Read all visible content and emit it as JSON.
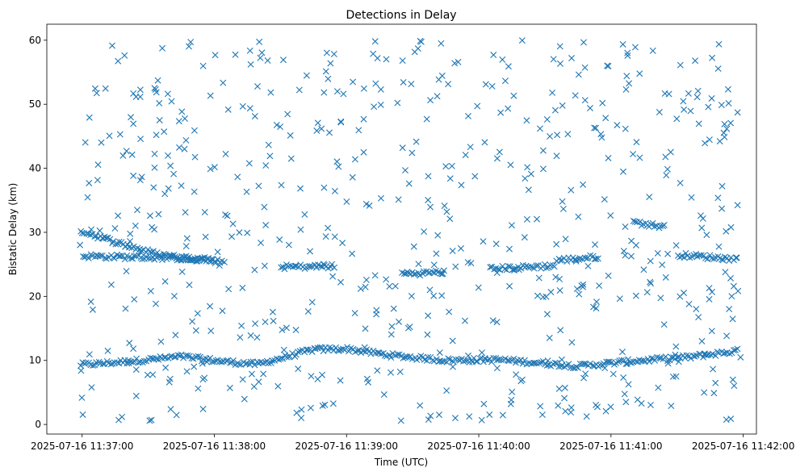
{
  "chart_data": {
    "type": "scatter",
    "title": "Detections in Delay",
    "xlabel": "Time (UTC)",
    "ylabel": "Bistatic Delay (km)",
    "marker": "x",
    "color": "#1f77b4",
    "grid": false,
    "legend": "none",
    "xlim": [
      "2025-07-16 11:36:44",
      "2025-07-16 11:42:06"
    ],
    "ylim": [
      -1.5,
      62.5
    ],
    "x_ticks": [
      "2025-07-16 11:37:00",
      "2025-07-16 11:38:00",
      "2025-07-16 11:39:00",
      "2025-07-16 11:40:00",
      "2025-07-16 11:41:00",
      "2025-07-16 11:42:00"
    ],
    "y_ticks": [
      0,
      10,
      20,
      30,
      40,
      50,
      60
    ],
    "series": [
      {
        "x_start": "2025-07-16 11:36:59",
        "x_end": "2025-07-16 11:41:59",
        "tracks": [
          {
            "x": [
              "2025-07-16 11:36:59",
              "2025-07-16 11:37:20",
              "2025-07-16 11:37:45",
              "2025-07-16 11:38:05",
              "2025-07-16 11:38:20",
              "2025-07-16 11:38:45",
              "2025-07-16 11:39:00",
              "2025-07-16 11:39:20",
              "2025-07-16 11:39:45",
              "2025-07-16 11:40:10",
              "2025-07-16 11:40:45",
              "2025-07-16 11:41:10",
              "2025-07-16 11:41:35",
              "2025-07-16 11:41:58"
            ],
            "y": [
              9.3,
              9.8,
              10.6,
              9.8,
              9.4,
              11.7,
              11.8,
              10.8,
              10.0,
              10.1,
              9.1,
              9.9,
              10.5,
              11.5
            ]
          },
          {
            "x": [
              "2025-07-16 11:36:59",
              "2025-07-16 11:37:15",
              "2025-07-16 11:37:35",
              "2025-07-16 11:37:55",
              "2025-07-16 11:38:05"
            ],
            "y": [
              30.3,
              28.5,
              26.5,
              25.7,
              25.4
            ]
          },
          {
            "x": [
              "2025-07-16 11:37:00",
              "2025-07-16 11:37:40",
              "2025-07-16 11:38:00"
            ],
            "y": [
              26.3,
              26.0,
              25.7
            ]
          },
          {
            "x": [
              "2025-07-16 11:38:30",
              "2025-07-16 11:38:55"
            ],
            "y": [
              24.6,
              24.7
            ]
          },
          {
            "x": [
              "2025-07-16 11:39:25",
              "2025-07-16 11:39:45"
            ],
            "y": [
              23.5,
              23.8
            ]
          },
          {
            "x": [
              "2025-07-16 11:40:05",
              "2025-07-16 11:40:35"
            ],
            "y": [
              24.3,
              24.8
            ]
          },
          {
            "x": [
              "2025-07-16 11:40:35",
              "2025-07-16 11:40:55"
            ],
            "y": [
              25.6,
              26.2
            ]
          },
          {
            "x": [
              "2025-07-16 11:41:10",
              "2025-07-16 11:41:25"
            ],
            "y": [
              31.6,
              30.8
            ]
          },
          {
            "x": [
              "2025-07-16 11:41:30",
              "2025-07-16 11:41:58"
            ],
            "y": [
              26.5,
              25.8
            ]
          }
        ],
        "background": {
          "count": 620,
          "y_range": [
            0.5,
            60
          ]
        }
      }
    ]
  }
}
